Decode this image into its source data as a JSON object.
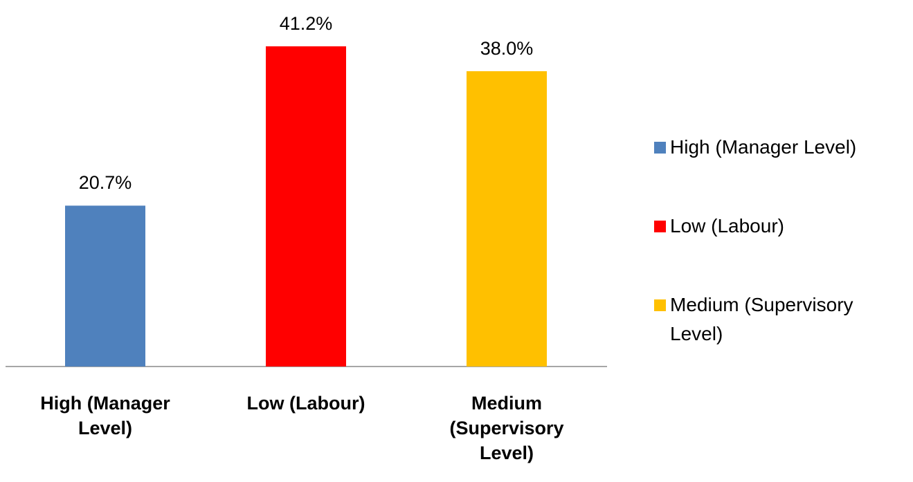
{
  "chart_data": {
    "type": "bar",
    "categories": [
      "High (Manager Level)",
      "Low (Labour)",
      "Medium (Supervisory Level)"
    ],
    "values": [
      20.7,
      41.2,
      38.0
    ],
    "value_labels": [
      "20.7%",
      "41.2%",
      "38.0%"
    ],
    "colors": [
      "#4f81bd",
      "#ff0000",
      "#ffc000"
    ],
    "legend": "right"
  }
}
